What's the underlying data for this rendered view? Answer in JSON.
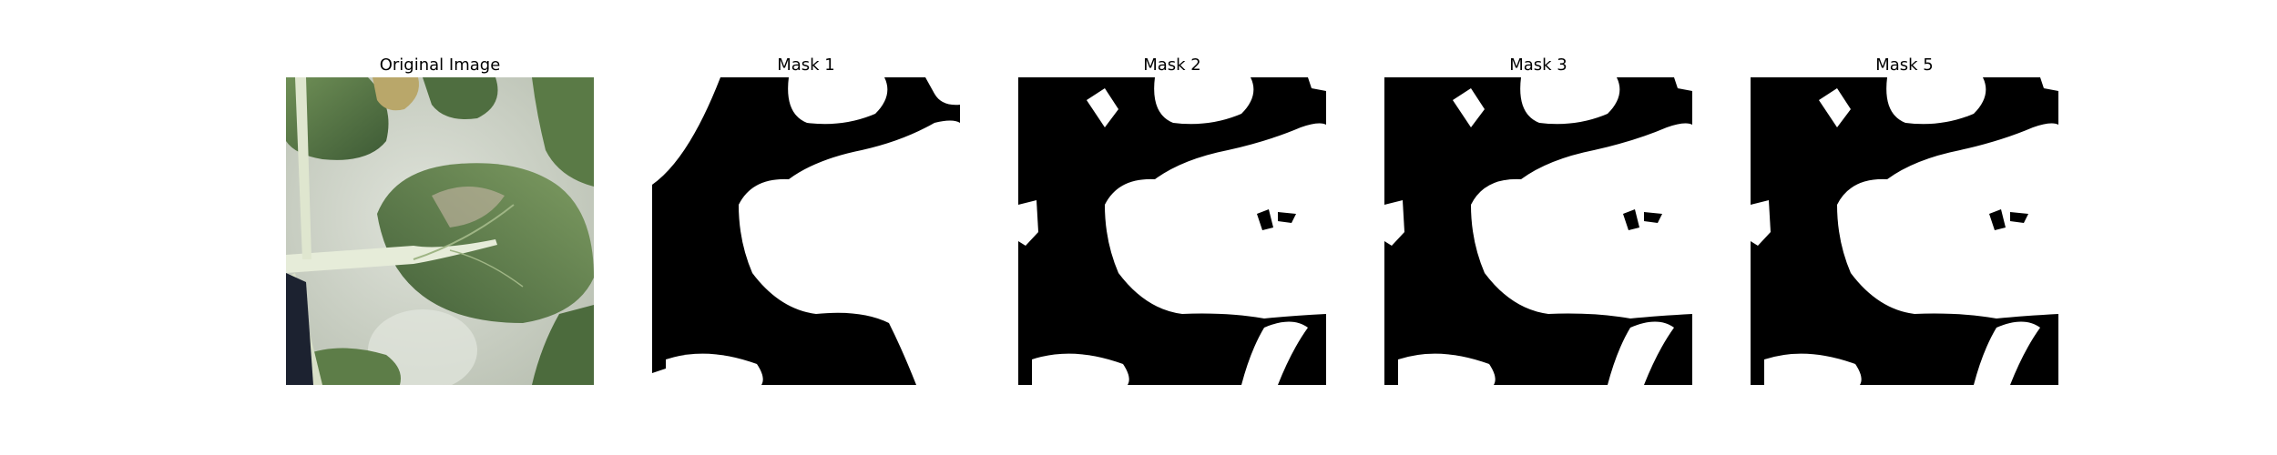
{
  "figure": {
    "panels": [
      {
        "title": "Original Image",
        "kind": "photo"
      },
      {
        "title": "Mask 1",
        "kind": "mask",
        "variant": 1
      },
      {
        "title": "Mask 2",
        "kind": "mask",
        "variant": 2
      },
      {
        "title": "Mask 3",
        "kind": "mask",
        "variant": 3
      },
      {
        "title": "Mask 5",
        "kind": "mask",
        "variant": 5
      }
    ]
  },
  "colors": {
    "background": "#ffffff",
    "mask_foreground": "#ffffff",
    "mask_background": "#000000",
    "leaf_dark": "#3d5a35",
    "leaf_mid": "#5f7f4a",
    "leaf_light": "#8aa56a",
    "wall": "#cdd3c7",
    "stem": "#e6ecd9"
  }
}
